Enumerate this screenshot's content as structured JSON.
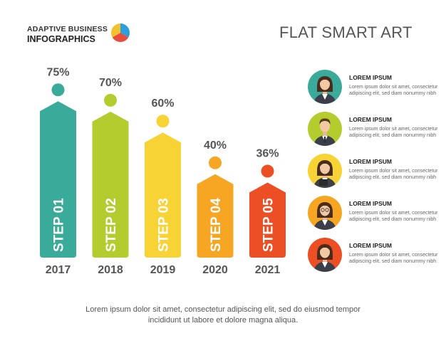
{
  "header": {
    "brand_line1": "ADAPTIVE BUSINESS",
    "brand_line2": "INFOGRAPHICS",
    "title": "FLAT SMART ART",
    "logo_colors": [
      "#2e9fd8",
      "#f2c12e",
      "#e84c3d"
    ]
  },
  "chart_data": {
    "type": "bar",
    "categories": [
      "2017",
      "2018",
      "2019",
      "2020",
      "2021"
    ],
    "values": [
      75,
      70,
      60,
      40,
      36
    ],
    "value_labels": [
      "75%",
      "70%",
      "60%",
      "40%",
      "36%"
    ],
    "bar_labels": [
      "STEP 01",
      "STEP 02",
      "STEP 03",
      "STEP 04",
      "STEP 05"
    ],
    "colors": [
      "#3aaa9a",
      "#b5cc2e",
      "#f7d336",
      "#f6a623",
      "#ed4f25"
    ],
    "ylim": [
      0,
      100
    ],
    "grid": false
  },
  "people": [
    {
      "name": "LOREM IPSUM",
      "desc": "Lorem ipsum dolor sit amet, consectetur adipiscing elit, sed diam nonummy nibh",
      "color": "#3aaa9a",
      "icon": "businesswoman-icon"
    },
    {
      "name": "LOREM IPSUM",
      "desc": "Lorem ipsum dolor sit amet, consectetur adipiscing elit, sed diam nonummy nibh",
      "color": "#b5cc2e",
      "icon": "businessman-icon"
    },
    {
      "name": "LOREM IPSUM",
      "desc": "Lorem ipsum dolor sit amet, consectetur adipiscing elit, sed diam nonummy nibh",
      "color": "#f7d336",
      "icon": "woman-with-tablet-icon"
    },
    {
      "name": "LOREM IPSUM",
      "desc": "Lorem ipsum dolor sit amet, consectetur adipiscing elit, sed diam nonummy nibh",
      "color": "#f6a623",
      "icon": "woman-with-glasses-icon"
    },
    {
      "name": "LOREM IPSUM",
      "desc": "Lorem ipsum dolor sit amet, consectetur adipiscing elit, sed diam nonummy nibh",
      "color": "#ed4f25",
      "icon": "woman-in-suit-icon"
    }
  ],
  "footer": {
    "line1": "Lorem ipsum dolor sit amet, consectetur adipiscing elit, sed do eiusmod tempor",
    "line2": "incididunt ut labore et dolore magna aliqua."
  }
}
